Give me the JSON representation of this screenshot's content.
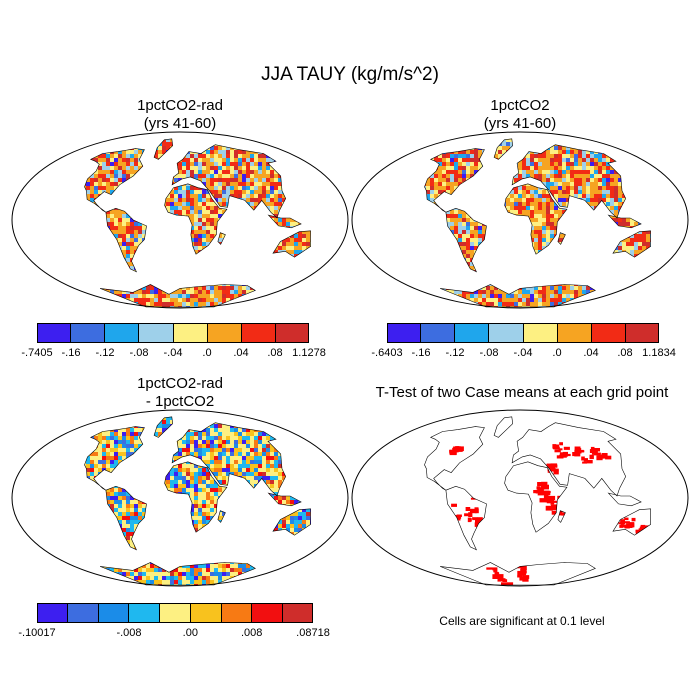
{
  "title": "JJA TAUY (kg/m/s^2)",
  "panels": [
    {
      "title_line1": "1pctCO2-rad",
      "title_line2": "(yrs 41-60)"
    },
    {
      "title_line1": "1pctCO2",
      "title_line2": "(yrs 41-60)"
    },
    {
      "title_line1": "1pctCO2-rad",
      "title_line2": "- 1pctCO2"
    },
    {
      "title_line1": "T-Test of two Case means at each grid point",
      "title_line2": ""
    }
  ],
  "colorbars": {
    "top_left": {
      "colors": [
        "#3d1ff0",
        "#3d6de0",
        "#1fa6ec",
        "#9ed0ea",
        "#fdf082",
        "#f6a422",
        "#f22b15",
        "#cf2d2b"
      ],
      "labels": [
        "-.7405",
        "-.16",
        "-.12",
        "-.08",
        "-.04",
        ".0",
        ".04",
        ".08",
        "1.1278"
      ]
    },
    "top_right": {
      "colors": [
        "#3d1ff0",
        "#3d6de0",
        "#1fa6ec",
        "#9ed0ea",
        "#fdf082",
        "#f6a422",
        "#f22b15",
        "#cf2d2b"
      ],
      "labels": [
        "-.6403",
        "-.16",
        "-.12",
        "-.08",
        "-.04",
        ".0",
        ".04",
        ".08",
        "1.1834"
      ]
    },
    "bottom_left": {
      "colors": [
        "#3d1ff0",
        "#3d6de0",
        "#1b8ce8",
        "#1fb8ef",
        "#fdf082",
        "#f8c21e",
        "#f77a14",
        "#f20f10",
        "#cf2d2b"
      ],
      "labels": [
        "-.10017",
        "-.008",
        ".00",
        ".008",
        ".08718"
      ]
    }
  },
  "note": "Cells are significant at 0.1 level",
  "significance_color": "#ff0000"
}
